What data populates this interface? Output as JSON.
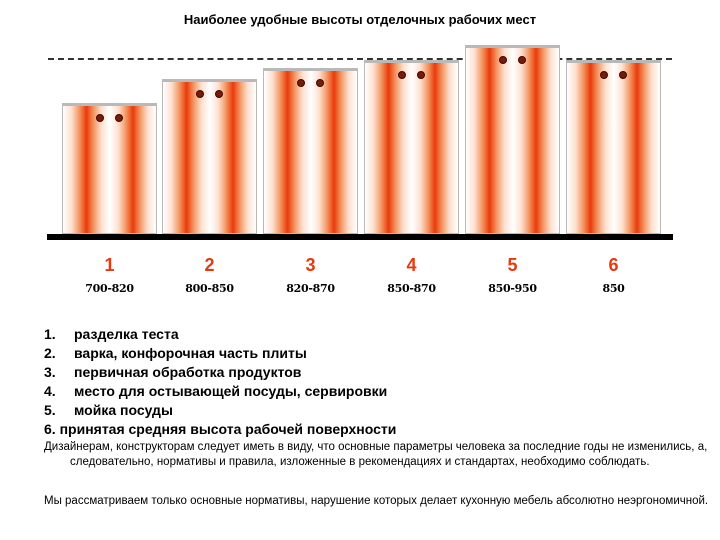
{
  "title": "Наиболее удобные высоты отделочных рабочих мест",
  "colors": {
    "accent": "#e8380f",
    "knob": "#7a1a08",
    "floor": "#000000"
  },
  "cabinets": [
    {
      "number": "1",
      "range": "700-820"
    },
    {
      "number": "2",
      "range": "800-850"
    },
    {
      "number": "3",
      "range": "820-870"
    },
    {
      "number": "4",
      "range": "850-870"
    },
    {
      "number": "5",
      "range": "850-950"
    },
    {
      "number": "6",
      "range": "850"
    }
  ],
  "list": [
    {
      "n": "1.",
      "text": "разделка теста"
    },
    {
      "n": "2.",
      "text": "варка, конфорочная часть плиты"
    },
    {
      "n": "3.",
      "text": "первичная обработка продуктов"
    },
    {
      "n": "4.",
      "text": "место для остывающей посуды, сервировки"
    },
    {
      "n": "5.",
      "text": "мойка посуды"
    },
    {
      "n": "6.",
      "text": "принятая средняя высота рабочей поверхности"
    }
  ],
  "paragraphs": [
    "Дизайнерам, конструкторам следует иметь в виду, что основные параметры человека за последние годы не изменились, а, следовательно, нормативы и правила, изложенные в рекомендациях и стандартах, необходимо соблюдать.",
    "Мы рассматриваем только основные нормативы, нарушение которых делает кухонную мебель абсолютно неэргономичной."
  ]
}
